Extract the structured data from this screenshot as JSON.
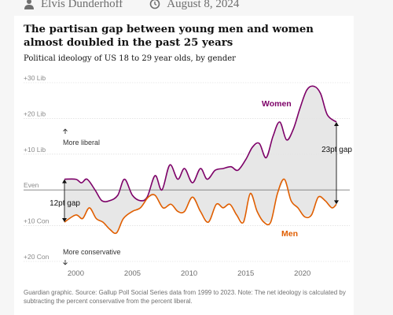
{
  "byline": {
    "author": "Elvis Dunderhoff",
    "date": "August 8, 2024",
    "author_icon": "person-icon",
    "date_icon": "clock-icon"
  },
  "title": "The partisan gap between young men and women almost doubled in the past 25 years",
  "subtitle": "Political ideology of US 18 to 29 year olds, by gender",
  "footnote": "Guardian graphic. Source: Gallup Poll Social Series data from 1999 to 2023. Note: The net ideology is calculated by subtracting the percent conservative from the percent liberal.",
  "colors": {
    "women": "#7d0068",
    "men": "#e05e00",
    "gap_fill": "#e3e3e3",
    "zero_line": "#7a7a7a",
    "grid": "#d6d6d6"
  },
  "annotations": {
    "more_liberal": "More liberal",
    "more_conservative": "More conservative",
    "gap_start": "12pt gap",
    "gap_end": "23pt gap"
  },
  "chart_data": {
    "type": "line",
    "title": "The partisan gap between young men and women almost doubled in the past 25 years",
    "subtitle": "Political ideology of US 18 to 29 year olds, by gender",
    "xlabel": "",
    "ylabel": "",
    "xlim": [
      1998.8,
      2023.2
    ],
    "ylim": [
      -20,
      30
    ],
    "xticks": [
      2000,
      2005,
      2010,
      2015,
      2020
    ],
    "yticks": [
      {
        "value": 30,
        "label": "+30 Lib"
      },
      {
        "value": 20,
        "label": "+20 Lib"
      },
      {
        "value": 10,
        "label": "+10 Lib"
      },
      {
        "value": 0,
        "label": "Even"
      },
      {
        "value": -10,
        "label": "+10 Con"
      },
      {
        "value": -20,
        "label": "+20 Con"
      }
    ],
    "grid": true,
    "legend": "direct-labels",
    "series": [
      {
        "name": "Women",
        "points": [
          [
            1999,
            3
          ],
          [
            2000,
            3
          ],
          [
            2000.5,
            2
          ],
          [
            2001,
            3
          ],
          [
            2001.7,
            0
          ],
          [
            2002.3,
            -3
          ],
          [
            2003,
            -3
          ],
          [
            2003.7,
            -1.5
          ],
          [
            2004.3,
            3
          ],
          [
            2005,
            -1.5
          ],
          [
            2005.7,
            -3
          ],
          [
            2006.3,
            -2
          ],
          [
            2007,
            4
          ],
          [
            2007.6,
            0
          ],
          [
            2008.3,
            7
          ],
          [
            2009,
            3
          ],
          [
            2009.6,
            6
          ],
          [
            2010.3,
            2
          ],
          [
            2011,
            6
          ],
          [
            2011.6,
            3
          ],
          [
            2012.3,
            5.5
          ],
          [
            2013,
            6
          ],
          [
            2013.7,
            6.5
          ],
          [
            2014.3,
            5.5
          ],
          [
            2015,
            8.5
          ],
          [
            2015.6,
            12
          ],
          [
            2016.2,
            13
          ],
          [
            2016.8,
            9
          ],
          [
            2017.4,
            15
          ],
          [
            2018,
            19
          ],
          [
            2018.6,
            14
          ],
          [
            2019.2,
            17
          ],
          [
            2019.8,
            23
          ],
          [
            2020.4,
            28
          ],
          [
            2021,
            29
          ],
          [
            2021.6,
            27
          ],
          [
            2022.2,
            21
          ],
          [
            2023,
            19
          ]
        ]
      },
      {
        "name": "Men",
        "points": [
          [
            1999,
            -9
          ],
          [
            2000,
            -7
          ],
          [
            2000.6,
            -8
          ],
          [
            2001.2,
            -5
          ],
          [
            2001.8,
            -8
          ],
          [
            2002.4,
            -9
          ],
          [
            2003,
            -11
          ],
          [
            2003.6,
            -12
          ],
          [
            2004.2,
            -8
          ],
          [
            2005,
            -6
          ],
          [
            2005.7,
            -5
          ],
          [
            2006.4,
            -2
          ],
          [
            2007,
            -1.5
          ],
          [
            2007.7,
            -5
          ],
          [
            2008.4,
            -4
          ],
          [
            2009,
            -6
          ],
          [
            2009.6,
            -6
          ],
          [
            2010.3,
            -2
          ],
          [
            2011,
            -6
          ],
          [
            2011.7,
            -9
          ],
          [
            2012.4,
            -4
          ],
          [
            2013,
            -5
          ],
          [
            2013.6,
            -4
          ],
          [
            2014.2,
            -7
          ],
          [
            2014.8,
            -9
          ],
          [
            2015.4,
            -1
          ],
          [
            2016,
            -6
          ],
          [
            2016.6,
            -9
          ],
          [
            2017.2,
            -9
          ],
          [
            2017.8,
            -1
          ],
          [
            2018.4,
            3
          ],
          [
            2019,
            -3
          ],
          [
            2019.6,
            -5
          ],
          [
            2020.2,
            -7.5
          ],
          [
            2020.8,
            -7
          ],
          [
            2021.4,
            -2
          ],
          [
            2022,
            -3
          ],
          [
            2022.6,
            -5
          ],
          [
            2023,
            -4
          ]
        ]
      }
    ],
    "gap_annotations": [
      {
        "label": "12pt gap",
        "x": 1999,
        "from": -9,
        "to": 3
      },
      {
        "label": "23pt gap",
        "x": 2023,
        "from": -4,
        "to": 19
      }
    ]
  }
}
